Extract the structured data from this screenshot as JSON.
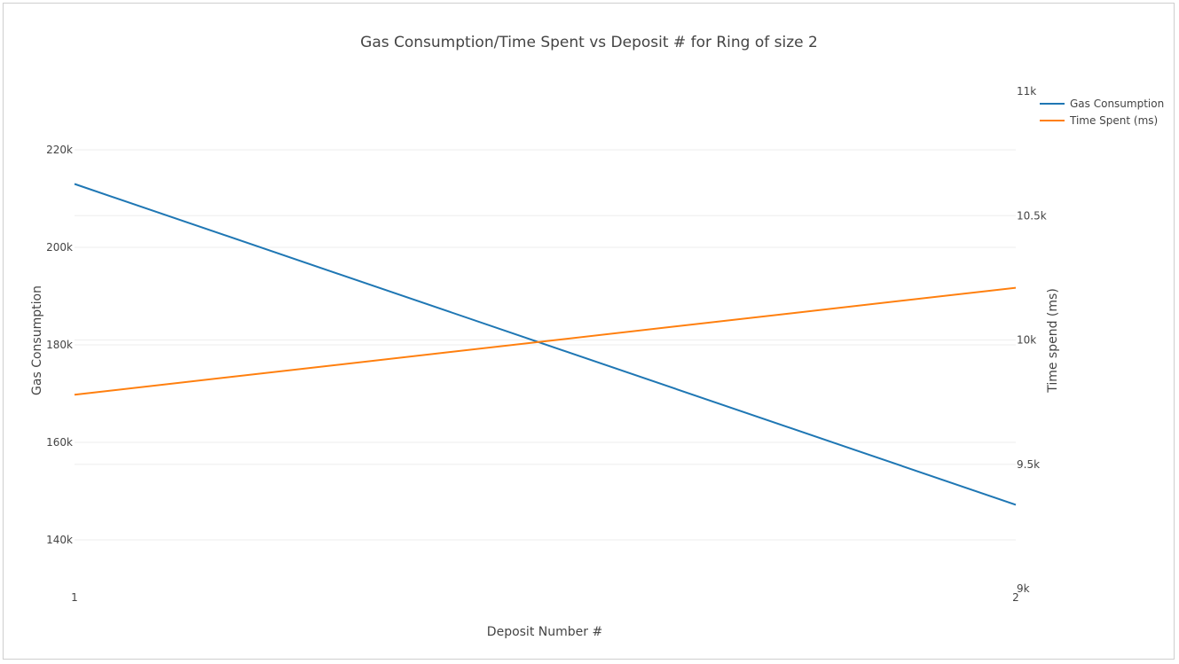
{
  "chart_data": {
    "type": "line",
    "title": "Gas Consumption/Time Spent vs Deposit # for Ring of size 2",
    "xlabel": "Deposit Number #",
    "ylabel": "Gas Consumption",
    "y2label": "Time spend (ms)",
    "x": [
      1,
      2
    ],
    "x_ticks": [
      "1",
      "2"
    ],
    "ylim": [
      130000,
      232000
    ],
    "y_ticks": [
      140000,
      160000,
      180000,
      200000,
      220000
    ],
    "y_tick_labels": [
      "140k",
      "160k",
      "180k",
      "200k",
      "220k"
    ],
    "y2lim": [
      9000,
      11000
    ],
    "y2_ticks": [
      9000,
      9500,
      10000,
      10500,
      11000
    ],
    "y2_tick_labels": [
      "9k",
      "9.5k",
      "10k",
      "10.5k",
      "11k"
    ],
    "series": [
      {
        "name": "Gas Consumption",
        "axis": "y",
        "color": "#1f77b4",
        "values": [
          213000,
          147200
        ]
      },
      {
        "name": "Time Spent (ms)",
        "axis": "y2",
        "color": "#ff7f0e",
        "values": [
          9780,
          10210
        ]
      }
    ],
    "legend_position": "top-right",
    "grid": true
  }
}
